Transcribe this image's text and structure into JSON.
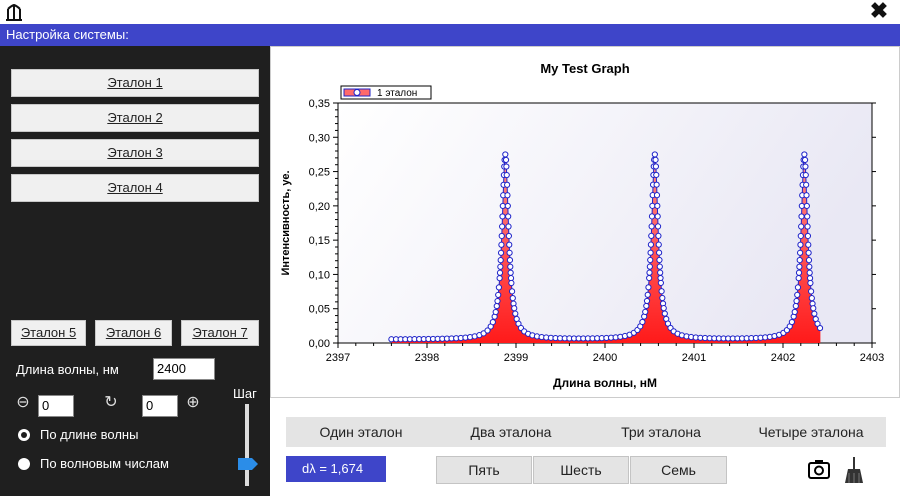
{
  "window": {
    "close_glyph": "✖"
  },
  "header": {
    "title": "Настройка системы:"
  },
  "left_panel": {
    "etalon_buttons": [
      "Эталон 1",
      "Эталон 2",
      "Эталон 3",
      "Эталон 4"
    ],
    "small_buttons": [
      "Эталон 5",
      "Эталон 6",
      "Эталон 7"
    ],
    "wavelength_label": "Длина волны, нм",
    "wavelength_value": "2400",
    "step_label": "Шаг",
    "minus_icon": "⊖",
    "refresh_icon": "↻",
    "plus_icon": "⊕",
    "field_left_value": "0",
    "field_right_value": "0",
    "radio_wavelength": "По длине волны",
    "radio_wavenumber": "По волновым числам",
    "radio_selected": "wavelength"
  },
  "bottom": {
    "tabs": [
      "Один эталон",
      "Два эталона",
      "Три эталона",
      "Четыре эталона"
    ],
    "dlambda": "dλ = 1,674",
    "action_buttons": [
      "Пять",
      "Шесть",
      "Семь"
    ]
  },
  "colors": {
    "accent": "#3e45c9",
    "panel": "#1f1f1f",
    "series_line": "#1f24c9",
    "series_fill": "#ff2a2a",
    "slider": "#2b8de8"
  },
  "icons": {
    "logo": "tuning-fork-icon",
    "close": "close-icon",
    "camera": "camera-icon",
    "broom": "broom-icon"
  },
  "chart_data": {
    "type": "line",
    "title": "My Test Graph",
    "xlabel": "Длина волны, нМ",
    "ylabel": "Интенсивность, уе.",
    "xlim": [
      2397,
      2403
    ],
    "ylim": [
      0,
      0.35
    ],
    "xticks": [
      "2397",
      "2398",
      "2399",
      "2400",
      "2401",
      "2402",
      "2403"
    ],
    "yticks": [
      "0,00",
      "0,05",
      "0,10",
      "0,15",
      "0,20",
      "0,25",
      "0,30",
      "0,35"
    ],
    "legend_position": "top-left",
    "grid": false,
    "series": [
      {
        "name": "1 эталон",
        "x_range": [
          2397.6,
          2402.42
        ],
        "peaks": [
          {
            "x": 2398.88,
            "y": 0.275
          },
          {
            "x": 2400.56,
            "y": 0.275
          },
          {
            "x": 2402.24,
            "y": 0.275
          }
        ],
        "baseline": 0.005
      }
    ]
  }
}
